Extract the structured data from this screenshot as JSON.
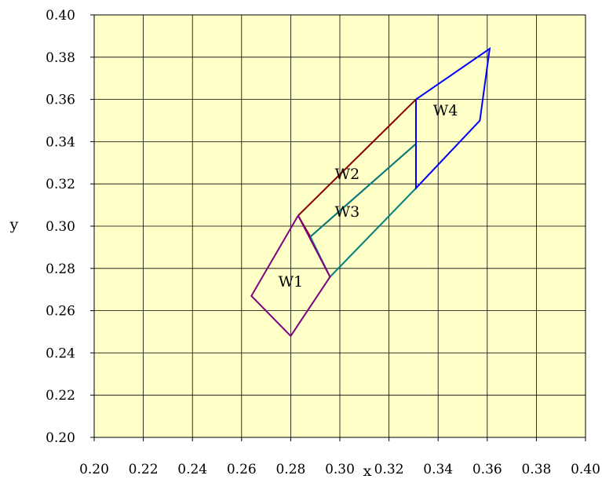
{
  "chart_data": {
    "type": "line",
    "title": "",
    "xlabel": "x",
    "ylabel": "y",
    "xlim": [
      0.2,
      0.4
    ],
    "ylim": [
      0.2,
      0.4
    ],
    "xticks": [
      "0.20",
      "0.22",
      "0.24",
      "0.26",
      "0.28",
      "0.30",
      "0.32",
      "0.34",
      "0.36",
      "0.38",
      "0.40"
    ],
    "yticks": [
      "0.20",
      "0.22",
      "0.24",
      "0.26",
      "0.28",
      "0.30",
      "0.32",
      "0.34",
      "0.36",
      "0.38",
      "0.40"
    ],
    "xtick_step": 0.02,
    "ytick_step": 0.02,
    "grid": true,
    "plot_background": "#ffffc8",
    "grid_color": "#000000",
    "series": [
      {
        "color": "#8b0000",
        "points": [
          [
            0.283,
            0.305
          ],
          [
            0.331,
            0.36
          ],
          [
            0.331,
            0.339
          ],
          [
            0.288,
            0.295
          ],
          [
            0.283,
            0.305
          ]
        ]
      },
      {
        "color": "#008080",
        "points": [
          [
            0.288,
            0.295
          ],
          [
            0.331,
            0.339
          ],
          [
            0.331,
            0.318
          ],
          [
            0.296,
            0.276
          ],
          [
            0.288,
            0.295
          ]
        ]
      },
      {
        "color": "#0000ff",
        "points": [
          [
            0.331,
            0.36
          ],
          [
            0.361,
            0.384
          ],
          [
            0.357,
            0.35
          ],
          [
            0.331,
            0.318
          ],
          [
            0.331,
            0.36
          ]
        ]
      },
      {
        "color": "#800080",
        "points": [
          [
            0.283,
            0.305
          ],
          [
            0.296,
            0.276
          ],
          [
            0.28,
            0.248
          ],
          [
            0.264,
            0.267
          ],
          [
            0.283,
            0.305
          ]
        ]
      }
    ],
    "annotations": [
      {
        "text": "W1",
        "x": 0.28,
        "y": 0.274
      },
      {
        "text": "W2",
        "x": 0.303,
        "y": 0.325
      },
      {
        "text": "W3",
        "x": 0.303,
        "y": 0.307
      },
      {
        "text": "W4",
        "x": 0.343,
        "y": 0.355
      }
    ]
  }
}
